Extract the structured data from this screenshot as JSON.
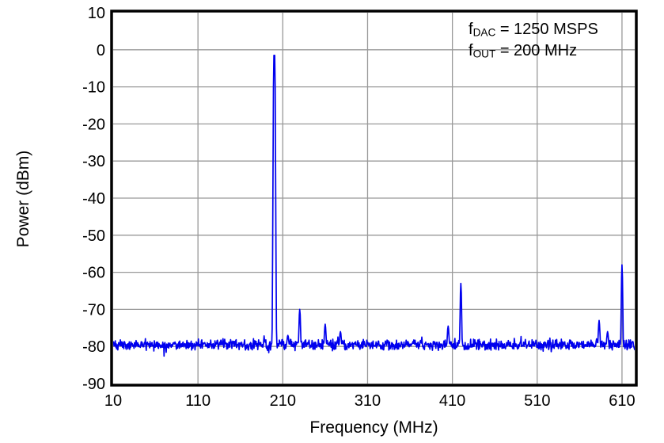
{
  "chart_data": {
    "type": "line",
    "title": "",
    "xlabel": "Frequency (MHz)",
    "ylabel": "Power (dBm)",
    "xlim": [
      10,
      625
    ],
    "ylim": [
      -90,
      10
    ],
    "xticks": [
      10,
      110,
      210,
      310,
      410,
      510,
      610
    ],
    "yticks": [
      10,
      0,
      -10,
      -20,
      -30,
      -40,
      -50,
      -60,
      -70,
      -80,
      -90
    ],
    "grid": true,
    "legend_position": "none",
    "line_color": "#0000EE",
    "grid_color": "#999999",
    "border_color": "#000000",
    "background_color": "#FFFFFF",
    "noise_floor_dbm": -79.5,
    "noise_peak_to_peak_db": 3.5,
    "carrier": {
      "freq_mhz": 200,
      "power_dbm": -1.5
    },
    "spurs": [
      {
        "freq_mhz": 216,
        "power_dbm": -77
      },
      {
        "freq_mhz": 230,
        "power_dbm": -70
      },
      {
        "freq_mhz": 260,
        "power_dbm": -74
      },
      {
        "freq_mhz": 278,
        "power_dbm": -76
      },
      {
        "freq_mhz": 405,
        "power_dbm": -74.5
      },
      {
        "freq_mhz": 420,
        "power_dbm": -63
      },
      {
        "freq_mhz": 583,
        "power_dbm": -73
      },
      {
        "freq_mhz": 593,
        "power_dbm": -76
      },
      {
        "freq_mhz": 610,
        "power_dbm": -58
      }
    ],
    "annotation": {
      "line1": {
        "pre": "f",
        "sub": "DAC",
        "post": " = 1250 MSPS"
      },
      "line2": {
        "pre": "f",
        "sub": "OUT",
        "post": " = 200 MHz"
      }
    }
  }
}
